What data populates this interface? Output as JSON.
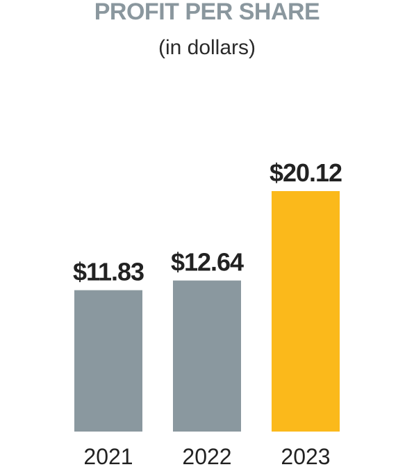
{
  "chart_data": {
    "type": "bar",
    "title": "PROFIT PER SHARE",
    "subtitle": "(in dollars)",
    "categories": [
      "2021",
      "2022",
      "2023"
    ],
    "values": [
      11.83,
      12.64,
      20.12
    ],
    "value_labels": [
      "$11.83",
      "$12.64",
      "$20.12"
    ],
    "colors": [
      "#8a989f",
      "#8a989f",
      "#fbb91b"
    ],
    "ylim": [
      0,
      20.12
    ],
    "grid": false
  }
}
